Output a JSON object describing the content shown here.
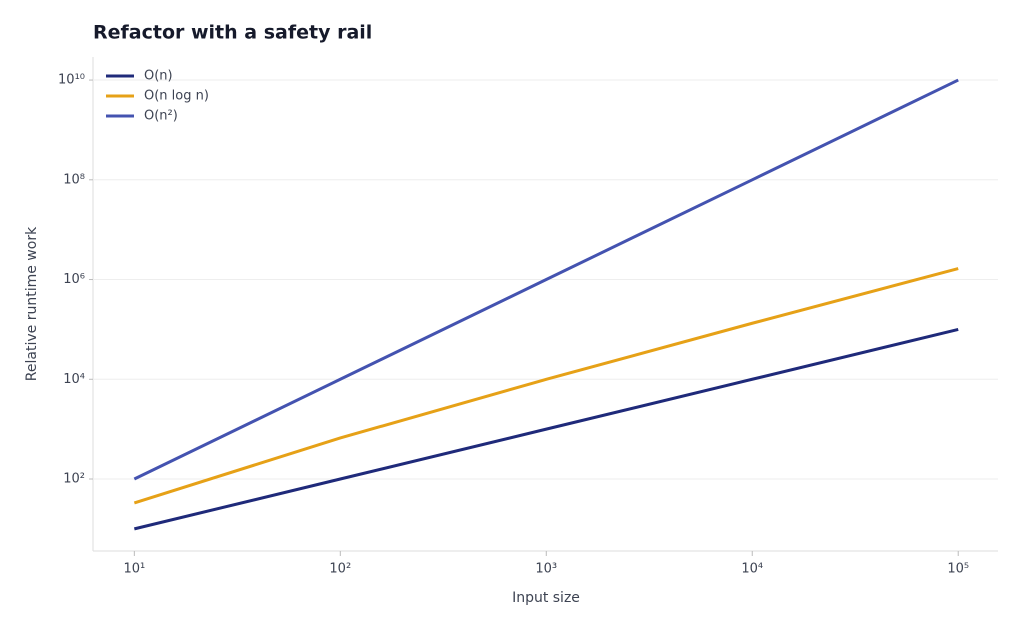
{
  "chart_data": {
    "type": "line",
    "title": "Refactor with a safety rail",
    "xlabel": "Input size",
    "ylabel": "Relative runtime work",
    "x": [
      10,
      100,
      1000,
      10000,
      100000
    ],
    "series": [
      {
        "name": "O(n)",
        "color": "#1f2a7a",
        "values": [
          10,
          100,
          1000,
          10000,
          100000
        ]
      },
      {
        "name": "O(n log n)",
        "color": "#e6a117",
        "values": [
          33.2,
          664.4,
          9966,
          132877,
          1660964
        ]
      },
      {
        "name": "O(n²)",
        "color": "#4453b0",
        "values": [
          100,
          10000,
          1000000,
          100000000,
          10000000000
        ]
      }
    ],
    "xscale": "log",
    "yscale": "log",
    "xlim": [
      6.3,
      156000
    ],
    "ylim": [
      3.6,
      29000000000
    ],
    "xticks": [
      {
        "value": 10,
        "label": "10¹"
      },
      {
        "value": 100,
        "label": "10²"
      },
      {
        "value": 1000,
        "label": "10³"
      },
      {
        "value": 10000,
        "label": "10⁴"
      },
      {
        "value": 100000,
        "label": "10⁵"
      }
    ],
    "yticks": [
      {
        "value": 100,
        "label": "10²"
      },
      {
        "value": 10000,
        "label": "10⁴"
      },
      {
        "value": 1000000,
        "label": "10⁶"
      },
      {
        "value": 100000000,
        "label": "10⁸"
      },
      {
        "value": 10000000000,
        "label": "10¹⁰"
      }
    ],
    "grid": true,
    "legend": "upper left"
  }
}
